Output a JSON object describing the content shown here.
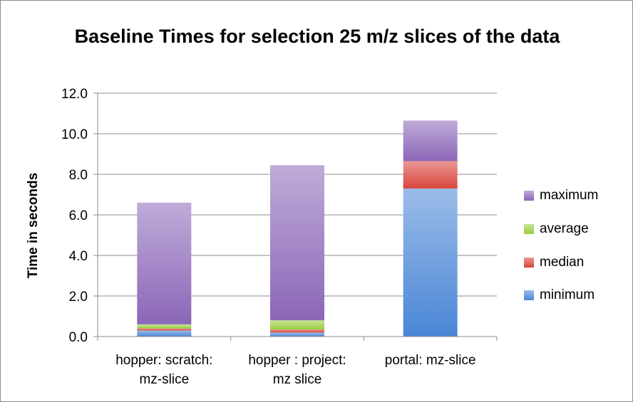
{
  "chart_data": {
    "type": "bar",
    "stacked": true,
    "title": "Baseline Times for selection 25 m/z slices of the data",
    "xlabel": "",
    "ylabel": "Time in seconds",
    "ylim": [
      0,
      12
    ],
    "yticks": [
      "0.0",
      "2.0",
      "4.0",
      "6.0",
      "8.0",
      "10.0",
      "12.0"
    ],
    "grid": true,
    "legend_position": "right",
    "categories": [
      [
        "hopper: scratch:",
        "mz-slice"
      ],
      [
        "hopper : project:",
        "mz slice"
      ],
      [
        "portal: mz-slice"
      ]
    ],
    "series": [
      {
        "name": "minimum",
        "values": [
          0.3,
          0.2,
          7.3
        ],
        "color": "#4a86d6"
      },
      {
        "name": "median",
        "values": [
          0.1,
          0.15,
          1.35
        ],
        "color": "#d9443c"
      },
      {
        "name": "average",
        "values": [
          0.2,
          0.45,
          0.0
        ],
        "color": "#9acd3e"
      },
      {
        "name": "maximum",
        "values": [
          6.0,
          7.65,
          2.0
        ],
        "color": "#8b67b8"
      }
    ]
  }
}
